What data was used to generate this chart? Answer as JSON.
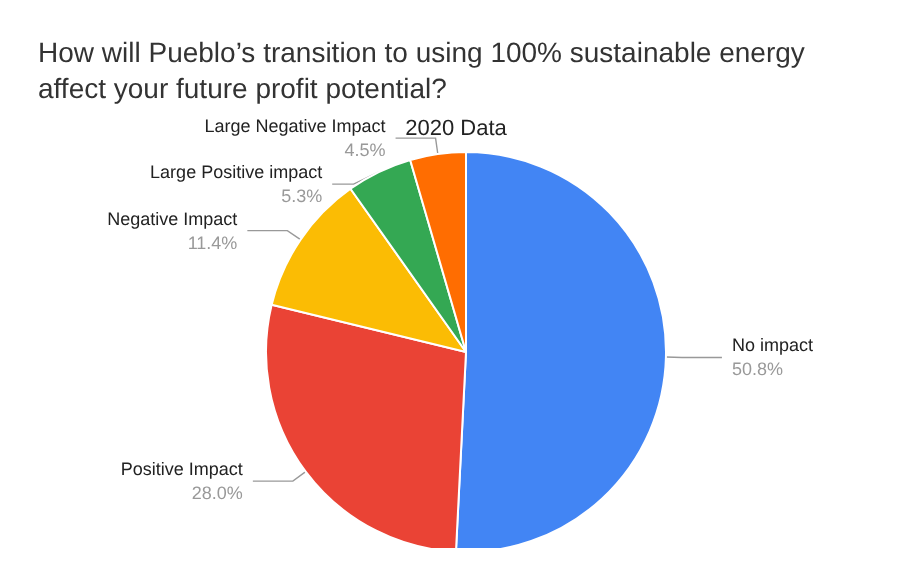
{
  "chart_data": {
    "type": "pie",
    "title": "How will Pueblo’s transition to using 100% sustainable energy\naffect your future profit potential?",
    "subtitle": "2020 Data",
    "categories": [
      "No impact",
      "Positive Impact",
      "Negative Impact",
      "Large Positive impact",
      "Large Negative Impact"
    ],
    "values": [
      50.8,
      28.0,
      11.4,
      5.3,
      4.5
    ],
    "colors": [
      "#4285f4",
      "#ea4335",
      "#fbbc04",
      "#34a853",
      "#ff6d01"
    ],
    "value_labels": [
      "50.8%",
      "28.0%",
      "11.4%",
      "5.3%",
      "4.5%"
    ],
    "legend": false
  }
}
